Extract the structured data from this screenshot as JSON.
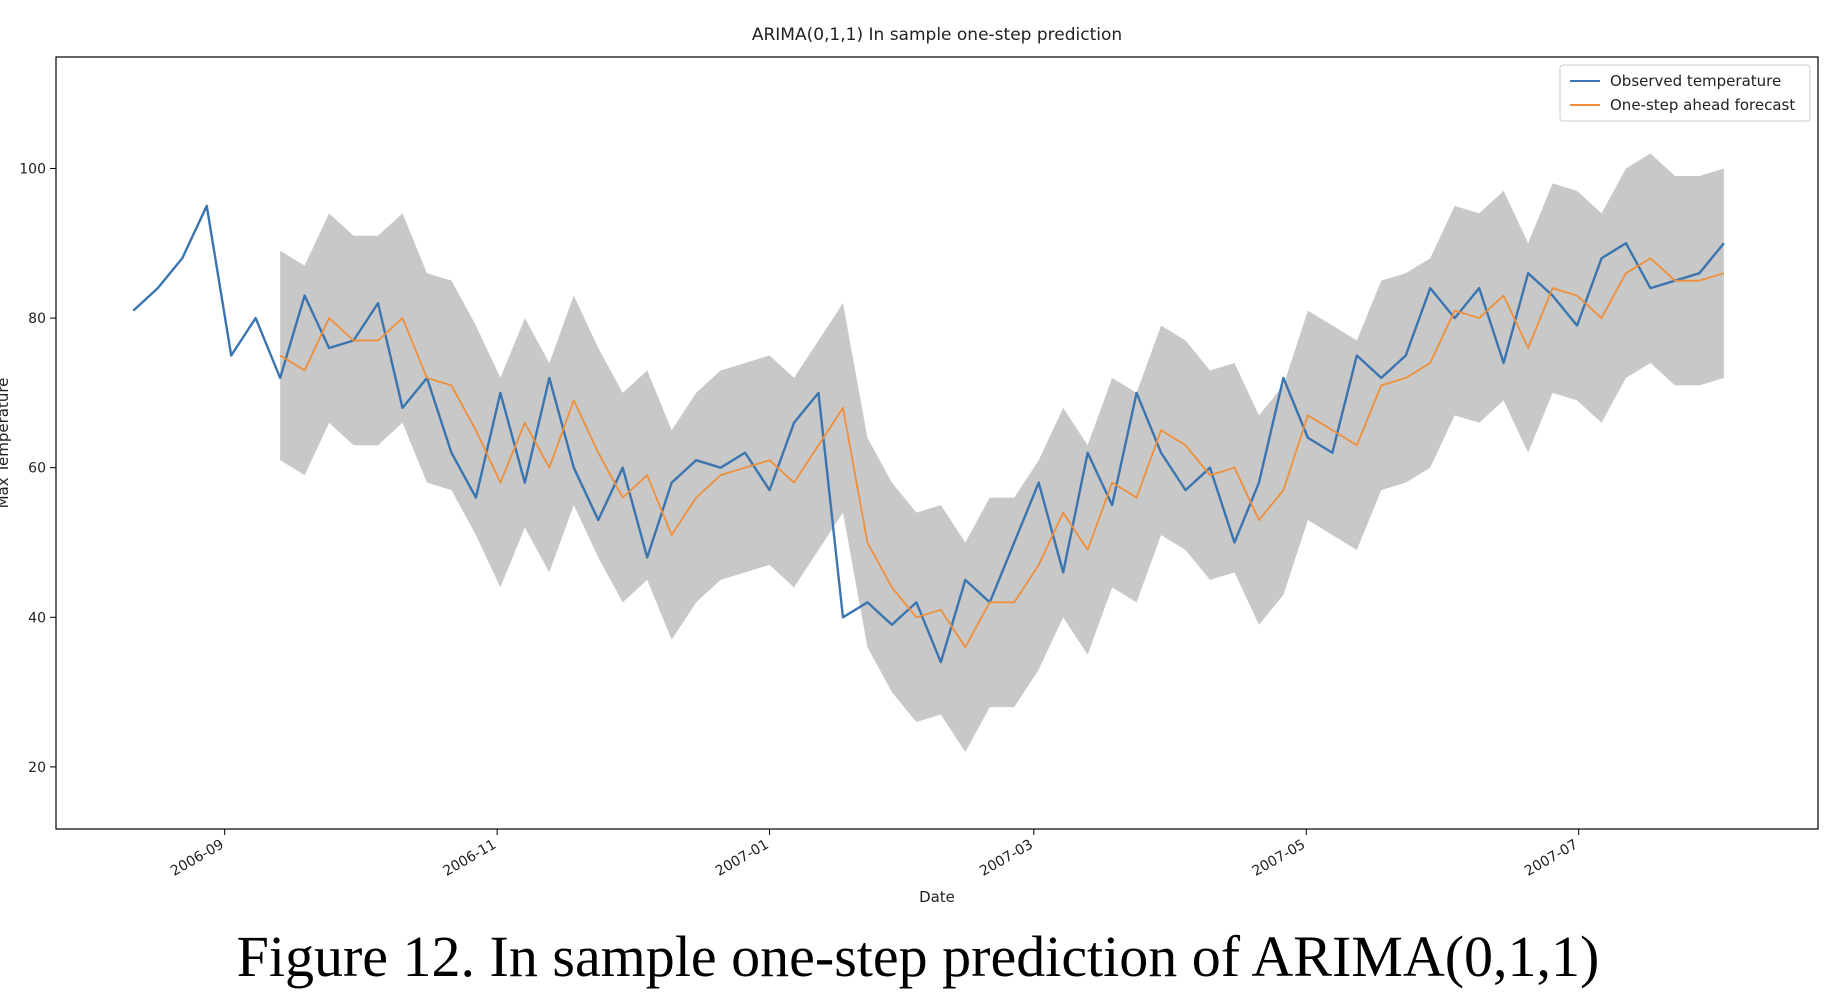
{
  "chart_data": {
    "type": "line",
    "title": "ARIMA(0,1,1) In sample one-step prediction",
    "xlabel": "Date",
    "ylabel": "Max Temperature",
    "caption": "Figure 12. In sample one-step prediction of ARIMA(0,1,1)",
    "x": [
      2006.61,
      2006.625,
      2006.64,
      2006.655,
      2006.67,
      2006.685,
      2006.7,
      2006.715,
      2006.73,
      2006.745,
      2006.76,
      2006.775,
      2006.79,
      2006.805,
      2006.82,
      2006.835,
      2006.85,
      2006.865,
      2006.88,
      2006.895,
      2006.91,
      2006.925,
      2006.94,
      2006.955,
      2006.97,
      2006.985,
      2007.0,
      2007.015,
      2007.03,
      2007.045,
      2007.06,
      2007.075,
      2007.09,
      2007.105,
      2007.12,
      2007.135,
      2007.15,
      2007.165,
      2007.18,
      2007.195,
      2007.21,
      2007.225,
      2007.24,
      2007.255,
      2007.27,
      2007.285,
      2007.3,
      2007.315,
      2007.33,
      2007.345,
      2007.36,
      2007.375,
      2007.39,
      2007.405,
      2007.42,
      2007.435,
      2007.45,
      2007.465,
      2007.48,
      2007.495,
      2007.51,
      2007.525,
      2007.54,
      2007.555,
      2007.57,
      2007.585
    ],
    "series": [
      {
        "name": "Observed temperature",
        "color": "#3b75af",
        "values": [
          81,
          84,
          88,
          95,
          75,
          80,
          72,
          83,
          76,
          77,
          82,
          68,
          72,
          62,
          56,
          70,
          58,
          72,
          60,
          53,
          60,
          48,
          58,
          61,
          60,
          62,
          57,
          66,
          70,
          40,
          42,
          39,
          42,
          34,
          45,
          42,
          50,
          58,
          46,
          62,
          55,
          70,
          62,
          57,
          60,
          50,
          58,
          72,
          64,
          62,
          75,
          72,
          75,
          84,
          80,
          84,
          74,
          86,
          83,
          79,
          88,
          90,
          84,
          85,
          86,
          90
        ]
      },
      {
        "name": "One-step ahead forecast",
        "color": "#ef8f3a",
        "values": [
          null,
          null,
          null,
          null,
          null,
          null,
          75,
          73,
          80,
          77,
          77,
          80,
          72,
          71,
          65,
          58,
          66,
          60,
          69,
          62,
          56,
          59,
          51,
          56,
          59,
          60,
          61,
          58,
          63,
          68,
          50,
          44,
          40,
          41,
          36,
          42,
          42,
          47,
          54,
          49,
          58,
          56,
          65,
          63,
          59,
          60,
          53,
          57,
          67,
          65,
          63,
          71,
          72,
          74,
          81,
          80,
          83,
          76,
          84,
          83,
          80,
          86,
          88,
          85,
          85,
          86
        ]
      }
    ],
    "band": {
      "color": "#c8c8c8",
      "lower": [
        null,
        null,
        null,
        null,
        null,
        null,
        61,
        59,
        66,
        63,
        63,
        66,
        58,
        57,
        51,
        44,
        52,
        46,
        55,
        48,
        42,
        45,
        37,
        42,
        45,
        46,
        47,
        44,
        49,
        54,
        36,
        30,
        26,
        27,
        22,
        28,
        28,
        33,
        40,
        35,
        44,
        42,
        51,
        49,
        45,
        46,
        39,
        43,
        53,
        51,
        49,
        57,
        58,
        60,
        67,
        66,
        69,
        62,
        70,
        69,
        66,
        72,
        74,
        71,
        71,
        72
      ],
      "upper": [
        null,
        null,
        null,
        null,
        null,
        null,
        89,
        87,
        94,
        91,
        91,
        94,
        86,
        85,
        79,
        72,
        80,
        74,
        83,
        76,
        70,
        73,
        65,
        70,
        73,
        74,
        75,
        72,
        77,
        82,
        64,
        58,
        54,
        55,
        50,
        56,
        56,
        61,
        68,
        63,
        72,
        70,
        79,
        77,
        73,
        74,
        67,
        71,
        81,
        79,
        77,
        85,
        86,
        88,
        95,
        94,
        97,
        90,
        98,
        97,
        94,
        100,
        102,
        99,
        99,
        100
      ]
    },
    "xlim": [
      2006.5626,
      2007.6427
    ],
    "xticks": [
      {
        "value": 2006.666,
        "label": "2006-09"
      },
      {
        "value": 2006.833,
        "label": "2006-11"
      },
      {
        "value": 2007.0,
        "label": "2007-01"
      },
      {
        "value": 2007.162,
        "label": "2007-03"
      },
      {
        "value": 2007.329,
        "label": "2007-05"
      },
      {
        "value": 2007.496,
        "label": "2007-07"
      }
    ],
    "ylim": [
      11.7,
      114.9
    ],
    "yticks": [
      20,
      40,
      60,
      80,
      100
    ],
    "legend": "upper right"
  }
}
